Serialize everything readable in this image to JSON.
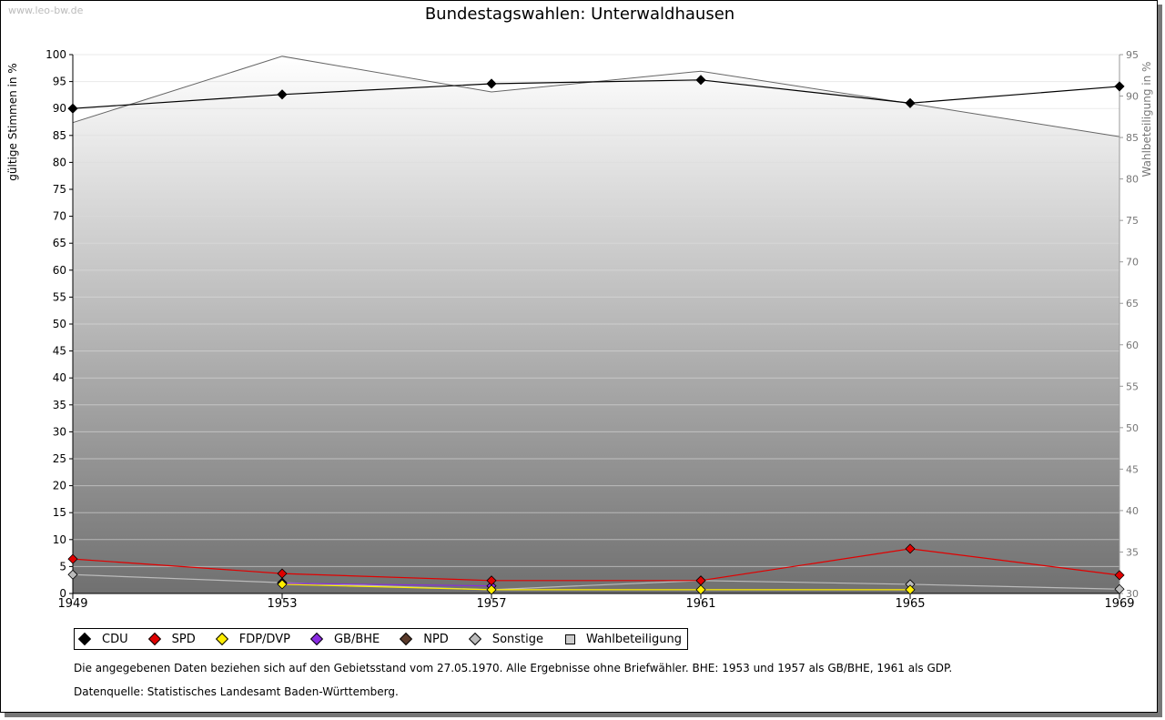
{
  "watermark": "www.leo-bw.de",
  "chart_data": {
    "type": "line",
    "title": "Bundestagswahlen: Unterwaldhausen",
    "ylabel": "gültige Stimmen in %",
    "y2label": "Wahlbeteiligung in %",
    "ylim": [
      0,
      100
    ],
    "y2lim": [
      30,
      95
    ],
    "yticks": [
      "0",
      "5",
      "10",
      "15",
      "20",
      "25",
      "30",
      "35",
      "40",
      "45",
      "50",
      "55",
      "60",
      "65",
      "70",
      "75",
      "80",
      "85",
      "90",
      "95",
      "100"
    ],
    "y2ticks": [
      "30",
      "35",
      "40",
      "45",
      "50",
      "55",
      "60",
      "65",
      "70",
      "75",
      "80",
      "85",
      "90",
      "95"
    ],
    "x": [
      "1949",
      "1953",
      "1957",
      "1961",
      "1965",
      "1969"
    ],
    "series": [
      {
        "name": "CDU",
        "color": "#000000",
        "values": [
          90.0,
          92.6,
          94.6,
          95.3,
          91.0,
          94.1
        ]
      },
      {
        "name": "SPD",
        "color": "#e00000",
        "values": [
          6.4,
          3.7,
          2.4,
          2.4,
          8.3,
          3.4
        ]
      },
      {
        "name": "FDP/DVP",
        "color": "#ffee00",
        "values": [
          null,
          1.7,
          0.7,
          0.7,
          0.7,
          null
        ]
      },
      {
        "name": "GB/BHE",
        "color": "#8a2be2",
        "values": [
          null,
          1.9,
          1.4,
          null,
          null,
          null
        ]
      },
      {
        "name": "NPD",
        "color": "#5a3a2a",
        "values": [
          null,
          null,
          null,
          null,
          null,
          null
        ]
      },
      {
        "name": "Sonstige",
        "color": "#bbbbbb",
        "values": [
          3.5,
          2.0,
          0.7,
          2.4,
          1.7,
          0.8
        ]
      }
    ],
    "turnout": {
      "name": "Wahlbeteiligung",
      "color": "#cccccc",
      "values": [
        86.8,
        94.8,
        90.5,
        93.0,
        89.1,
        85.1
      ]
    },
    "grid": true,
    "legend": "bottom"
  },
  "notes": [
    "Die angegebenen Daten beziehen sich auf den Gebietsstand vom 27.05.1970. Alle Ergebnisse ohne Briefwähler. BHE: 1953 und 1957 als GB/BHE, 1961 als GDP.",
    "Datenquelle: Statistisches Landesamt Baden-Württemberg."
  ]
}
